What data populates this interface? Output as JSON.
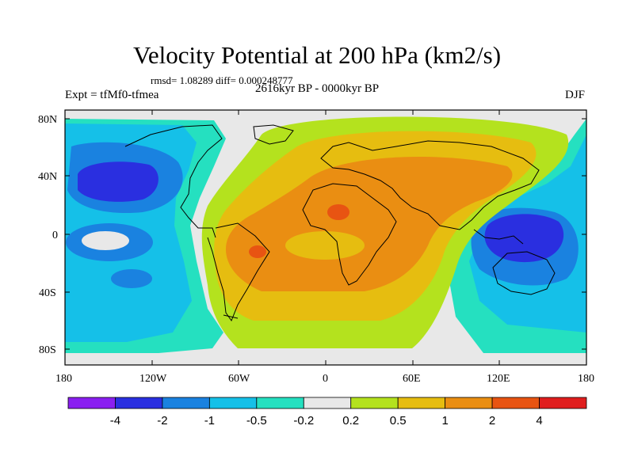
{
  "header": {
    "title": "Velocity Potential at 200 hPa (km2/s)",
    "stats": "rmsd= 1.08289 diff= 0.000248777",
    "experiment": "Expt = tfMf0-tfmea",
    "period": "2616kyr BP - 0000kyr BP",
    "season": "DJF"
  },
  "axes": {
    "lat_ticks": [
      "80N",
      "40N",
      "0",
      "40S",
      "80S"
    ],
    "lon_ticks": [
      "180",
      "120W",
      "60W",
      "0",
      "60E",
      "120E",
      "180"
    ]
  },
  "colorbar": {
    "colors": [
      "#8a1ff0",
      "#2a2fe0",
      "#1a82e0",
      "#15c0e8",
      "#25e0c0",
      "#e8e8e8",
      "#b4e21e",
      "#e6bd10",
      "#ea8e12",
      "#e85412",
      "#e01e1e"
    ],
    "labels": [
      "-4",
      "-2",
      "-1",
      "-0.5",
      "-0.2",
      "0.2",
      "0.5",
      "1",
      "2",
      "4"
    ]
  }
}
